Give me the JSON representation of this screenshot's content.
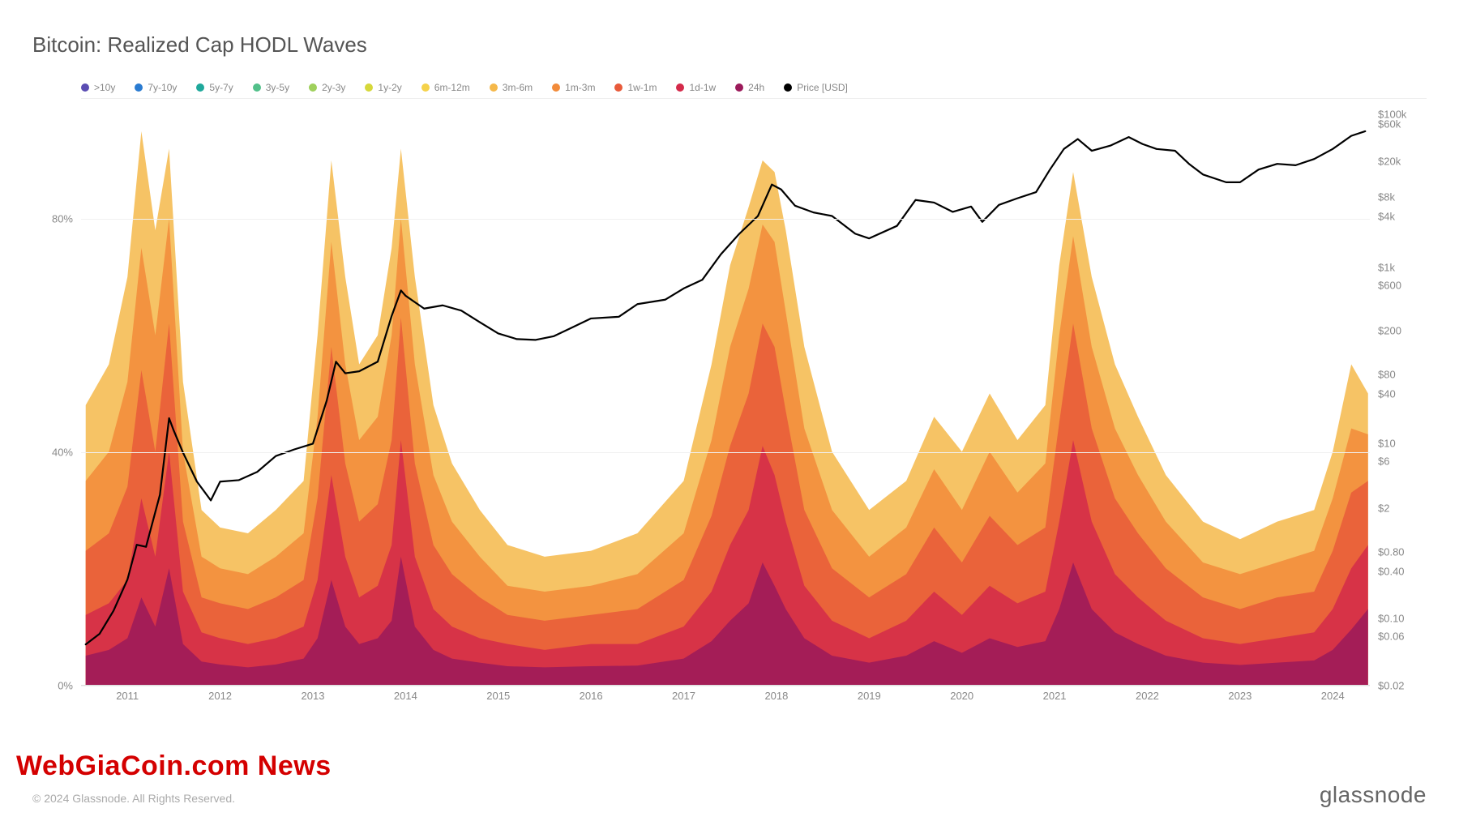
{
  "title": "Bitcoin: Realized Cap HODL Waves",
  "copyright": "© 2024 Glassnode. All Rights Reserved.",
  "brand": "glassnode",
  "watermark": "WebGiaCoin.com News",
  "legend_items": [
    {
      "label": ">10y",
      "color": "#5b4db3"
    },
    {
      "label": "7y-10y",
      "color": "#2a7bd1"
    },
    {
      "label": "5y-7y",
      "color": "#1fa89b"
    },
    {
      "label": "3y-5y",
      "color": "#52c08a"
    },
    {
      "label": "2y-3y",
      "color": "#9fd05c"
    },
    {
      "label": "1y-2y",
      "color": "#d6d83a"
    },
    {
      "label": "6m-12m",
      "color": "#f5d24a"
    },
    {
      "label": "3m-6m",
      "color": "#f5b84a"
    },
    {
      "label": "1m-3m",
      "color": "#f28b3a"
    },
    {
      "label": "1w-1m",
      "color": "#e85a3a"
    },
    {
      "label": "1d-1w",
      "color": "#d42a4a"
    },
    {
      "label": "24h",
      "color": "#9b1a5a"
    },
    {
      "label": "Price [USD]",
      "color": "#000000"
    }
  ],
  "y_left": {
    "ticks": [
      {
        "v": 0,
        "label": "0%"
      },
      {
        "v": 40,
        "label": "40%"
      },
      {
        "v": 80,
        "label": "80%"
      }
    ],
    "min": 0,
    "max": 100
  },
  "y_right_labels": [
    "$100k",
    "$60k",
    "$20k",
    "$8k",
    "$4k",
    "$1k",
    "$600",
    "$200",
    "$80",
    "$40",
    "$10",
    "$6",
    "$2",
    "$0.80",
    "$0.40",
    "$0.10",
    "$0.06",
    "$0.02"
  ],
  "y_right_positions": [
    3,
    5.5,
    15,
    24,
    29,
    42,
    46.5,
    58,
    69,
    74,
    86.5,
    91,
    103,
    114,
    119,
    131,
    135.5,
    148
  ],
  "x_years": [
    2011,
    2012,
    2013,
    2014,
    2015,
    2016,
    2017,
    2018,
    2019,
    2020,
    2021,
    2022,
    2023,
    2024
  ],
  "x_range": [
    2010.5,
    2024.4
  ],
  "chart": {
    "plot_bg": "#ffffff",
    "grid_color": "#f0f0f0",
    "price_color": "#000000",
    "price_stroke_width": 2.2,
    "area_opacity": 0.85,
    "price_log_min": 0.02,
    "price_log_max": 150000,
    "price_points": [
      [
        2010.55,
        0.06
      ],
      [
        2010.7,
        0.08
      ],
      [
        2010.85,
        0.15
      ],
      [
        2011.0,
        0.35
      ],
      [
        2011.1,
        0.9
      ],
      [
        2011.2,
        0.85
      ],
      [
        2011.35,
        3.5
      ],
      [
        2011.45,
        28
      ],
      [
        2011.5,
        20
      ],
      [
        2011.6,
        11
      ],
      [
        2011.75,
        5
      ],
      [
        2011.9,
        3
      ],
      [
        2012.0,
        5
      ],
      [
        2012.2,
        5.2
      ],
      [
        2012.4,
        6.5
      ],
      [
        2012.6,
        10
      ],
      [
        2012.8,
        12
      ],
      [
        2013.0,
        14
      ],
      [
        2013.15,
        45
      ],
      [
        2013.25,
        130
      ],
      [
        2013.35,
        95
      ],
      [
        2013.5,
        100
      ],
      [
        2013.7,
        130
      ],
      [
        2013.85,
        450
      ],
      [
        2013.95,
        900
      ],
      [
        2014.0,
        780
      ],
      [
        2014.2,
        550
      ],
      [
        2014.4,
        600
      ],
      [
        2014.6,
        520
      ],
      [
        2014.8,
        380
      ],
      [
        2015.0,
        280
      ],
      [
        2015.2,
        240
      ],
      [
        2015.4,
        235
      ],
      [
        2015.6,
        260
      ],
      [
        2015.8,
        330
      ],
      [
        2016.0,
        420
      ],
      [
        2016.3,
        440
      ],
      [
        2016.5,
        620
      ],
      [
        2016.8,
        700
      ],
      [
        2017.0,
        950
      ],
      [
        2017.2,
        1200
      ],
      [
        2017.4,
        2400
      ],
      [
        2017.6,
        4200
      ],
      [
        2017.8,
        6800
      ],
      [
        2017.95,
        16000
      ],
      [
        2018.05,
        14000
      ],
      [
        2018.2,
        9000
      ],
      [
        2018.4,
        7500
      ],
      [
        2018.6,
        6800
      ],
      [
        2018.85,
        4200
      ],
      [
        2019.0,
        3700
      ],
      [
        2019.3,
        5200
      ],
      [
        2019.5,
        10500
      ],
      [
        2019.7,
        9800
      ],
      [
        2019.9,
        7600
      ],
      [
        2020.1,
        8800
      ],
      [
        2020.22,
        5800
      ],
      [
        2020.4,
        9200
      ],
      [
        2020.6,
        11000
      ],
      [
        2020.8,
        13000
      ],
      [
        2020.95,
        24000
      ],
      [
        2021.1,
        42000
      ],
      [
        2021.25,
        55000
      ],
      [
        2021.4,
        40000
      ],
      [
        2021.6,
        46000
      ],
      [
        2021.8,
        58000
      ],
      [
        2021.95,
        48000
      ],
      [
        2022.1,
        42000
      ],
      [
        2022.3,
        40000
      ],
      [
        2022.45,
        28000
      ],
      [
        2022.6,
        21000
      ],
      [
        2022.85,
        17000
      ],
      [
        2023.0,
        17000
      ],
      [
        2023.2,
        24000
      ],
      [
        2023.4,
        28000
      ],
      [
        2023.6,
        27000
      ],
      [
        2023.8,
        32000
      ],
      [
        2024.0,
        42000
      ],
      [
        2024.2,
        60000
      ],
      [
        2024.35,
        68000
      ]
    ],
    "bands": [
      {
        "color": "#9b1a5a",
        "key": "24h"
      },
      {
        "color": "#d42a4a",
        "key": "1d-1w"
      },
      {
        "color": "#e85a3a",
        "key": "1w-1m"
      },
      {
        "color": "#f28b3a",
        "key": "1m-3m"
      },
      {
        "color": "#f5b84a",
        "key": "3m-6m"
      }
    ],
    "area_x": [
      2010.55,
      2010.8,
      2011.0,
      2011.15,
      2011.3,
      2011.45,
      2011.6,
      2011.8,
      2012.0,
      2012.3,
      2012.6,
      2012.9,
      2013.05,
      2013.2,
      2013.35,
      2013.5,
      2013.7,
      2013.85,
      2013.95,
      2014.1,
      2014.3,
      2014.5,
      2014.8,
      2015.1,
      2015.5,
      2016.0,
      2016.5,
      2017.0,
      2017.3,
      2017.5,
      2017.7,
      2017.85,
      2017.98,
      2018.1,
      2018.3,
      2018.6,
      2019.0,
      2019.4,
      2019.7,
      2020.0,
      2020.3,
      2020.6,
      2020.9,
      2021.05,
      2021.2,
      2021.4,
      2021.65,
      2021.9,
      2022.2,
      2022.6,
      2023.0,
      2023.4,
      2023.8,
      2024.0,
      2024.2,
      2024.38
    ],
    "area_top_3m-6m": [
      48,
      55,
      70,
      95,
      78,
      92,
      52,
      30,
      27,
      26,
      30,
      35,
      60,
      90,
      70,
      55,
      60,
      75,
      92,
      70,
      48,
      38,
      30,
      24,
      22,
      23,
      26,
      35,
      55,
      72,
      82,
      90,
      88,
      78,
      58,
      40,
      30,
      35,
      46,
      40,
      50,
      42,
      48,
      72,
      88,
      70,
      55,
      46,
      36,
      28,
      25,
      28,
      30,
      40,
      55,
      50
    ],
    "area_top_1m-3m": [
      35,
      40,
      52,
      75,
      60,
      80,
      40,
      22,
      20,
      19,
      22,
      26,
      46,
      76,
      55,
      42,
      46,
      60,
      80,
      55,
      36,
      28,
      22,
      17,
      16,
      17,
      19,
      26,
      42,
      58,
      68,
      79,
      76,
      64,
      44,
      30,
      22,
      27,
      37,
      30,
      40,
      33,
      38,
      60,
      77,
      58,
      44,
      36,
      28,
      21,
      19,
      21,
      23,
      32,
      44,
      43
    ],
    "area_top_1w-1m": [
      23,
      26,
      34,
      54,
      40,
      62,
      28,
      15,
      14,
      13,
      15,
      18,
      32,
      58,
      38,
      28,
      31,
      42,
      63,
      38,
      24,
      19,
      15,
      12,
      11,
      12,
      13,
      18,
      29,
      41,
      50,
      62,
      58,
      47,
      30,
      20,
      15,
      19,
      27,
      21,
      29,
      24,
      27,
      45,
      62,
      44,
      32,
      26,
      20,
      15,
      13,
      15,
      16,
      23,
      33,
      35
    ],
    "area_top_1d-1w": [
      12,
      14,
      18,
      32,
      22,
      40,
      16,
      9,
      8,
      7,
      8,
      10,
      18,
      36,
      22,
      15,
      17,
      24,
      42,
      22,
      13,
      10,
      8,
      7,
      6,
      7,
      7,
      10,
      16,
      24,
      30,
      41,
      36,
      28,
      17,
      11,
      8,
      11,
      16,
      12,
      17,
      14,
      16,
      28,
      42,
      28,
      19,
      15,
      11,
      8,
      7,
      8,
      9,
      13,
      20,
      24
    ],
    "area_top_24h": [
      5,
      6,
      8,
      15,
      10,
      20,
      7,
      4,
      3.5,
      3,
      3.5,
      4.5,
      8,
      18,
      10,
      7,
      8,
      11,
      22,
      10,
      6,
      4.5,
      3.8,
      3.2,
      3,
      3.2,
      3.3,
      4.5,
      7.5,
      11,
      14,
      21,
      17,
      13,
      8,
      5,
      3.8,
      5,
      7.5,
      5.5,
      8,
      6.5,
      7.5,
      13,
      21,
      13,
      9,
      7,
      5,
      3.8,
      3.4,
      3.8,
      4.2,
      6,
      9.5,
      13
    ]
  }
}
